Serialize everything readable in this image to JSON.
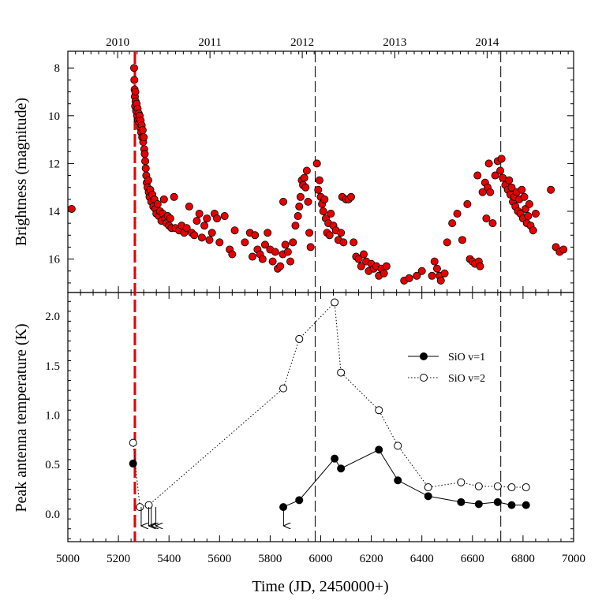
{
  "chart_data": {
    "type": "scatter",
    "xlabel": "Time (JD, 2450000+)",
    "x_range": [
      5000,
      7000
    ],
    "x_ticks": [
      5000,
      5200,
      5400,
      5600,
      5800,
      6000,
      6200,
      6400,
      6600,
      6800,
      7000
    ],
    "year_axis": {
      "labels": [
        "2010",
        "2011",
        "2012",
        "2013",
        "2014"
      ],
      "positions_jd": [
        5197,
        5562,
        5927,
        6293,
        6658
      ]
    },
    "markers": {
      "red_dashed_jd": 5265,
      "black_dashed_jd": [
        5978,
        6712
      ]
    },
    "brightness_panel": {
      "ylabel": "Brightness (magnitude)",
      "y_range": [
        17.4,
        7.3
      ],
      "y_ticks": [
        8,
        10,
        12,
        14,
        16
      ],
      "series": {
        "name": "Brightness",
        "color": "#e60000",
        "points": [
          [
            5015,
            13.9
          ],
          [
            5262,
            8.0
          ],
          [
            5263,
            8.5
          ],
          [
            5264,
            8.9
          ],
          [
            5265,
            9.2
          ],
          [
            5266,
            9.6
          ],
          [
            5267,
            9.0
          ],
          [
            5268,
            9.4
          ],
          [
            5270,
            9.8
          ],
          [
            5272,
            9.5
          ],
          [
            5274,
            10.0
          ],
          [
            5276,
            9.7
          ],
          [
            5278,
            10.2
          ],
          [
            5280,
            9.9
          ],
          [
            5282,
            10.3
          ],
          [
            5284,
            10.0
          ],
          [
            5286,
            10.5
          ],
          [
            5288,
            10.2
          ],
          [
            5290,
            10.7
          ],
          [
            5292,
            10.4
          ],
          [
            5294,
            10.9
          ],
          [
            5296,
            10.6
          ],
          [
            5298,
            11.1
          ],
          [
            5300,
            10.9
          ],
          [
            5302,
            11.4
          ],
          [
            5304,
            11.6
          ],
          [
            5306,
            11.9
          ],
          [
            5308,
            12.2
          ],
          [
            5310,
            12.5
          ],
          [
            5312,
            12.8
          ],
          [
            5315,
            13.0
          ],
          [
            5318,
            12.7
          ],
          [
            5320,
            13.2
          ],
          [
            5323,
            13.4
          ],
          [
            5326,
            13.1
          ],
          [
            5330,
            13.6
          ],
          [
            5334,
            13.3
          ],
          [
            5338,
            13.8
          ],
          [
            5342,
            13.5
          ],
          [
            5346,
            13.9
          ],
          [
            5350,
            14.1
          ],
          [
            5355,
            13.7
          ],
          [
            5360,
            14.2
          ],
          [
            5365,
            14.0
          ],
          [
            5370,
            14.4
          ],
          [
            5375,
            14.1
          ],
          [
            5380,
            13.5
          ],
          [
            5385,
            14.3
          ],
          [
            5390,
            14.5
          ],
          [
            5395,
            14.2
          ],
          [
            5400,
            14.6
          ],
          [
            5405,
            14.3
          ],
          [
            5410,
            14.7
          ],
          [
            5420,
            13.4
          ],
          [
            5425,
            14.7
          ],
          [
            5440,
            14.8
          ],
          [
            5450,
            14.6
          ],
          [
            5460,
            14.9
          ],
          [
            5470,
            14.7
          ],
          [
            5480,
            13.8
          ],
          [
            5490,
            14.9
          ],
          [
            5500,
            15.0
          ],
          [
            5510,
            14.4
          ],
          [
            5520,
            14.1
          ],
          [
            5530,
            15.1
          ],
          [
            5540,
            14.6
          ],
          [
            5550,
            14.3
          ],
          [
            5560,
            15.2
          ],
          [
            5570,
            14.9
          ],
          [
            5580,
            14.1
          ],
          [
            5590,
            14.3
          ],
          [
            5600,
            15.3
          ],
          [
            5620,
            14.2
          ],
          [
            5640,
            15.6
          ],
          [
            5650,
            15.8
          ],
          [
            5660,
            14.8
          ],
          [
            5700,
            15.3
          ],
          [
            5720,
            14.9
          ],
          [
            5730,
            15.9
          ],
          [
            5740,
            15.0
          ],
          [
            5750,
            15.6
          ],
          [
            5760,
            15.8
          ],
          [
            5770,
            16.0
          ],
          [
            5780,
            15.4
          ],
          [
            5790,
            14.9
          ],
          [
            5800,
            15.6
          ],
          [
            5810,
            16.1
          ],
          [
            5820,
            15.7
          ],
          [
            5830,
            16.4
          ],
          [
            5840,
            16.3
          ],
          [
            5850,
            15.8
          ],
          [
            5852,
            13.6
          ],
          [
            5860,
            15.4
          ],
          [
            5870,
            15.7
          ],
          [
            5880,
            16.1
          ],
          [
            5890,
            15.3
          ],
          [
            5900,
            14.6
          ],
          [
            5910,
            14.2
          ],
          [
            5915,
            13.8
          ],
          [
            5920,
            13.4
          ],
          [
            5925,
            12.7
          ],
          [
            5930,
            12.9
          ],
          [
            5935,
            12.6
          ],
          [
            5940,
            13.0
          ],
          [
            5945,
            12.3
          ],
          [
            5950,
            13.6
          ],
          [
            5955,
            14.9
          ],
          [
            5960,
            15.5
          ],
          [
            5985,
            12.0
          ],
          [
            5990,
            13.1
          ],
          [
            5995,
            12.7
          ],
          [
            6000,
            13.4
          ],
          [
            6005,
            13.7
          ],
          [
            6010,
            14.0
          ],
          [
            6015,
            13.5
          ],
          [
            6020,
            14.3
          ],
          [
            6025,
            14.9
          ],
          [
            6030,
            14.5
          ],
          [
            6035,
            15.0
          ],
          [
            6040,
            14.1
          ],
          [
            6050,
            14.6
          ],
          [
            6060,
            14.8
          ],
          [
            6070,
            15.2
          ],
          [
            6080,
            14.9
          ],
          [
            6085,
            13.4
          ],
          [
            6090,
            15.3
          ],
          [
            6100,
            13.5
          ],
          [
            6110,
            13.5
          ],
          [
            6120,
            13.4
          ],
          [
            6130,
            15.3
          ],
          [
            6140,
            15.9
          ],
          [
            6150,
            16.0
          ],
          [
            6160,
            16.3
          ],
          [
            6170,
            15.8
          ],
          [
            6180,
            16.1
          ],
          [
            6190,
            16.5
          ],
          [
            6200,
            16.2
          ],
          [
            6210,
            16.4
          ],
          [
            6220,
            16.3
          ],
          [
            6230,
            16.7
          ],
          [
            6240,
            16.4
          ],
          [
            6250,
            16.6
          ],
          [
            6260,
            16.3
          ],
          [
            6330,
            16.9
          ],
          [
            6350,
            16.8
          ],
          [
            6380,
            16.7
          ],
          [
            6400,
            16.5
          ],
          [
            6440,
            16.7
          ],
          [
            6450,
            16.1
          ],
          [
            6460,
            16.4
          ],
          [
            6470,
            16.7
          ],
          [
            6475,
            16.9
          ],
          [
            6490,
            16.6
          ],
          [
            6500,
            15.3
          ],
          [
            6520,
            14.5
          ],
          [
            6540,
            14.1
          ],
          [
            6560,
            15.2
          ],
          [
            6580,
            13.7
          ],
          [
            6590,
            16.0
          ],
          [
            6600,
            16.1
          ],
          [
            6610,
            16.2
          ],
          [
            6620,
            12.5
          ],
          [
            6625,
            16.1
          ],
          [
            6630,
            16.3
          ],
          [
            6640,
            13.2
          ],
          [
            6650,
            12.8
          ],
          [
            6655,
            14.3
          ],
          [
            6660,
            13.0
          ],
          [
            6665,
            12.0
          ],
          [
            6670,
            13.2
          ],
          [
            6680,
            14.5
          ],
          [
            6690,
            12.5
          ],
          [
            6700,
            11.9
          ],
          [
            6710,
            12.3
          ],
          [
            6715,
            11.8
          ],
          [
            6720,
            12.6
          ],
          [
            6730,
            12.9
          ],
          [
            6740,
            13.1
          ],
          [
            6745,
            12.7
          ],
          [
            6750,
            13.3
          ],
          [
            6755,
            13.0
          ],
          [
            6760,
            13.6
          ],
          [
            6765,
            13.4
          ],
          [
            6770,
            13.8
          ],
          [
            6775,
            13.2
          ],
          [
            6780,
            14.0
          ],
          [
            6785,
            13.5
          ],
          [
            6790,
            14.1
          ],
          [
            6795,
            13.1
          ],
          [
            6800,
            14.3
          ],
          [
            6805,
            13.4
          ],
          [
            6810,
            13.9
          ],
          [
            6815,
            14.5
          ],
          [
            6820,
            14.2
          ],
          [
            6825,
            13.7
          ],
          [
            6830,
            14.6
          ],
          [
            6840,
            14.8
          ],
          [
            6850,
            14.1
          ],
          [
            6910,
            13.1
          ],
          [
            6930,
            15.5
          ],
          [
            6945,
            15.7
          ],
          [
            6960,
            15.6
          ]
        ]
      }
    },
    "antenna_panel": {
      "ylabel": "Peak antenna temperature (K)",
      "y_range": [
        -0.28,
        2.24
      ],
      "y_ticks": [
        0.0,
        0.5,
        1.0,
        1.5,
        2.0
      ],
      "y_tick_labels": [
        "0.0",
        "0.5",
        "1.0",
        "1.5",
        "2.0"
      ],
      "series": [
        {
          "name": "SiO v=1",
          "style": "solid",
          "marker": "filled",
          "points": [
            [
              5258,
              0.51
            ],
            [
              5852,
              0.07
            ],
            [
              5915,
              0.14
            ],
            [
              6055,
              0.56
            ],
            [
              6080,
              0.46
            ],
            [
              6230,
              0.65
            ],
            [
              6305,
              0.34
            ],
            [
              6425,
              0.18
            ],
            [
              6555,
              0.12
            ],
            [
              6625,
              0.1
            ],
            [
              6700,
              0.12
            ],
            [
              6755,
              0.09
            ],
            [
              6812,
              0.09
            ]
          ]
        },
        {
          "name": "SiO v=2",
          "style": "dotted",
          "marker": "open",
          "points": [
            [
              5258,
              0.72
            ],
            [
              5285,
              0.07
            ],
            [
              5320,
              0.09
            ],
            [
              5852,
              1.27
            ],
            [
              5915,
              1.77
            ],
            [
              6055,
              2.14
            ],
            [
              6080,
              1.43
            ],
            [
              6230,
              1.05
            ],
            [
              6305,
              0.69
            ],
            [
              6425,
              0.27
            ],
            [
              6555,
              0.32
            ],
            [
              6625,
              0.28
            ],
            [
              6700,
              0.28
            ],
            [
              6755,
              0.27
            ],
            [
              6812,
              0.27
            ]
          ]
        }
      ],
      "upper_limit_arrows_jd": [
        5290,
        5320,
        5330,
        5348,
        5853
      ],
      "legend": [
        "SiO v=1",
        "SiO v=2"
      ]
    }
  }
}
